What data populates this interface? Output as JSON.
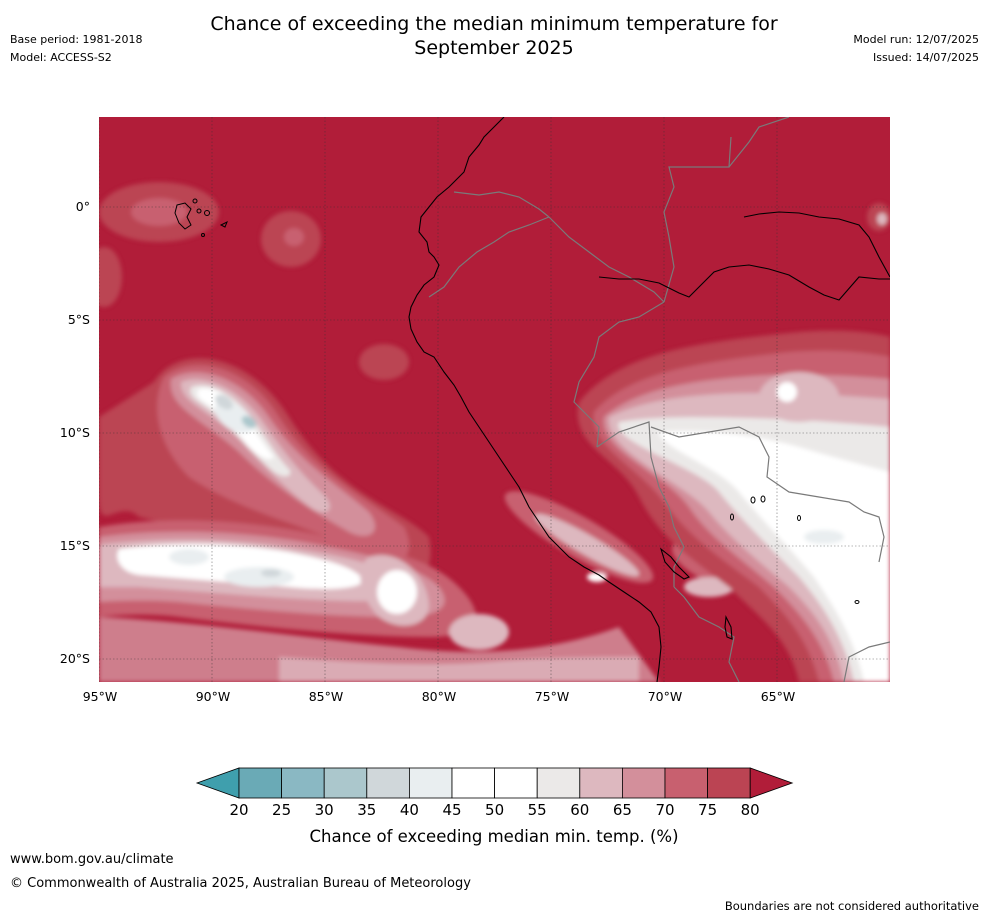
{
  "header": {
    "title_line1": "Chance of exceeding the median minimum temperature for",
    "title_line2": "September 2025",
    "base_period": "Base period: 1981-2018",
    "model": "Model: ACCESS-S2",
    "model_run": "Model run: 12/07/2025",
    "issued": "Issued: 14/07/2025"
  },
  "map": {
    "lat_labels": [
      "0°",
      "5°S",
      "10°S",
      "15°S",
      "20°S"
    ],
    "lon_labels": [
      "95°W",
      "90°W",
      "85°W",
      "80°W",
      "75°W",
      "70°W",
      "65°W"
    ],
    "background_class_color": "#b11d39"
  },
  "colorbar": {
    "ticks": [
      "20",
      "25",
      "30",
      "35",
      "40",
      "45",
      "50",
      "55",
      "60",
      "65",
      "70",
      "75",
      "80"
    ],
    "colors": [
      "#6aaab6",
      "#8ab8c3",
      "#abc7cc",
      "#d0d7da",
      "#e9eef0",
      "#ffffff",
      "#ffffff",
      "#ebe9e8",
      "#ddb8bf",
      "#d38f9b",
      "#c8606f",
      "#bb4453"
    ],
    "low_color": "#3f9fad",
    "high_color": "#b11d39",
    "label": "Chance of exceeding median min. temp. (%)"
  },
  "footer": {
    "url": "www.bom.gov.au/climate",
    "copyright": "© Commonwealth of Australia 2025, Australian Bureau of Meteorology",
    "disclaimer": "Boundaries are not considered authoritative"
  }
}
